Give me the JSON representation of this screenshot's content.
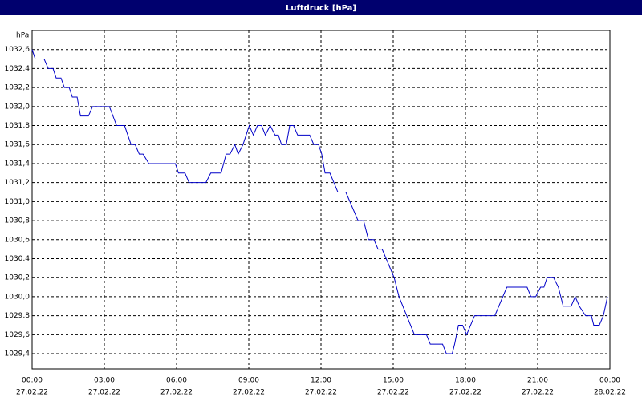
{
  "chart_data": {
    "type": "line",
    "title": "Luftdruck [hPa]",
    "y_label": "hPa",
    "xlim": [
      0,
      24
    ],
    "xticks": [
      {
        "value": 0,
        "label": "00:00"
      },
      {
        "value": 3,
        "label": "03:00"
      },
      {
        "value": 6,
        "label": "06:00"
      },
      {
        "value": 9,
        "label": "09:00"
      },
      {
        "value": 12,
        "label": "12:00"
      },
      {
        "value": 15,
        "label": "15:00"
      },
      {
        "value": 18,
        "label": "18:00"
      },
      {
        "value": 21,
        "label": "21:00"
      },
      {
        "value": 24,
        "label": "00:00"
      }
    ],
    "xtick_dates": [
      "27.02.22",
      "27.02.22",
      "27.02.22",
      "27.02.22",
      "27.02.22",
      "27.02.22",
      "27.02.22",
      "27.02.22",
      "28.02.22"
    ],
    "ylim": [
      1029.24,
      1032.8
    ],
    "yticks": [
      {
        "value": 1029.4,
        "label": "1029,4"
      },
      {
        "value": 1029.6,
        "label": "1029,6"
      },
      {
        "value": 1029.8,
        "label": "1029,8"
      },
      {
        "value": 1030.0,
        "label": "1030,0"
      },
      {
        "value": 1030.2,
        "label": "1030,2"
      },
      {
        "value": 1030.4,
        "label": "1030,4"
      },
      {
        "value": 1030.6,
        "label": "1030,6"
      },
      {
        "value": 1030.8,
        "label": "1030,8"
      },
      {
        "value": 1031.0,
        "label": "1031,0"
      },
      {
        "value": 1031.2,
        "label": "1031,2"
      },
      {
        "value": 1031.4,
        "label": "1031,4"
      },
      {
        "value": 1031.6,
        "label": "1031,6"
      },
      {
        "value": 1031.8,
        "label": "1031,8"
      },
      {
        "value": 1032.0,
        "label": "1032,0"
      },
      {
        "value": 1032.2,
        "label": "1032,2"
      },
      {
        "value": 1032.4,
        "label": "1032,4"
      },
      {
        "value": 1032.6,
        "label": "1032,6"
      }
    ],
    "grid": true,
    "series": [
      {
        "color": "#0000c8",
        "x": [
          0,
          0.13,
          0.5,
          0.67,
          0.87,
          1.0,
          1.2,
          1.34,
          1.54,
          1.67,
          1.87,
          2.01,
          2.34,
          2.51,
          3.21,
          3.51,
          3.84,
          4.11,
          4.28,
          4.45,
          4.61,
          4.85,
          5.95,
          6.08,
          6.35,
          6.52,
          7.22,
          7.42,
          7.85,
          8.06,
          8.22,
          8.42,
          8.56,
          8.76,
          9.02,
          9.19,
          9.36,
          9.53,
          9.69,
          9.89,
          10.09,
          10.23,
          10.36,
          10.56,
          10.7,
          10.86,
          11.03,
          11.53,
          11.7,
          11.9,
          12.03,
          12.17,
          12.37,
          12.7,
          13.03,
          13.2,
          13.54,
          13.77,
          13.97,
          14.2,
          14.37,
          14.54,
          15.04,
          15.24,
          15.88,
          16.38,
          16.54,
          17.05,
          17.21,
          17.45,
          17.55,
          17.71,
          17.88,
          18.05,
          18.38,
          19.22,
          19.72,
          20.56,
          20.72,
          20.92,
          21.12,
          21.26,
          21.39,
          21.66,
          21.86,
          22.06,
          22.39,
          22.56,
          22.73,
          22.99,
          23.23,
          23.33,
          23.56,
          23.73,
          23.9
        ],
        "values": [
          1032.6,
          1032.5,
          1032.5,
          1032.4,
          1032.4,
          1032.3,
          1032.3,
          1032.2,
          1032.2,
          1032.1,
          1032.1,
          1031.9,
          1031.9,
          1032.0,
          1032.0,
          1031.8,
          1031.8,
          1031.6,
          1031.6,
          1031.5,
          1031.5,
          1031.4,
          1031.4,
          1031.3,
          1031.3,
          1031.2,
          1031.2,
          1031.3,
          1031.3,
          1031.5,
          1031.5,
          1031.6,
          1031.5,
          1031.6,
          1031.8,
          1031.7,
          1031.8,
          1031.8,
          1031.7,
          1031.8,
          1031.7,
          1031.7,
          1031.6,
          1031.6,
          1031.8,
          1031.8,
          1031.7,
          1031.7,
          1031.6,
          1031.6,
          1031.5,
          1031.3,
          1031.3,
          1031.1,
          1031.1,
          1031.0,
          1030.8,
          1030.8,
          1030.6,
          1030.6,
          1030.5,
          1030.5,
          1030.2,
          1030.0,
          1029.6,
          1029.6,
          1029.5,
          1029.5,
          1029.4,
          1029.4,
          1029.5,
          1029.7,
          1029.7,
          1029.6,
          1029.8,
          1029.8,
          1030.1,
          1030.1,
          1030.0,
          1030.0,
          1030.1,
          1030.1,
          1030.2,
          1030.2,
          1030.1,
          1029.9,
          1029.9,
          1030.0,
          1029.9,
          1029.8,
          1029.8,
          1029.7,
          1029.7,
          1029.8,
          1030.0
        ]
      }
    ]
  }
}
